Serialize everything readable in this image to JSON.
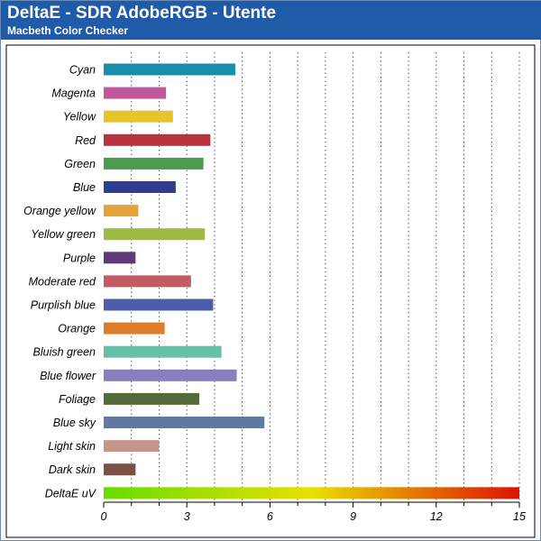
{
  "header": {
    "title": "DeltaE - SDR AdobeRGB - Utente",
    "subtitle": "Macbeth Color Checker"
  },
  "chart_data": {
    "type": "bar",
    "orientation": "horizontal",
    "categories": [
      "Cyan",
      "Magenta",
      "Yellow",
      "Red",
      "Green",
      "Blue",
      "Orange yellow",
      "Yellow green",
      "Purple",
      "Moderate red",
      "Purplish blue",
      "Orange",
      "Bluish green",
      "Blue flower",
      "Foliage",
      "Blue sky",
      "Light skin",
      "Dark skin",
      "DeltaE uV"
    ],
    "values": [
      4.75,
      2.25,
      2.5,
      3.85,
      3.6,
      2.6,
      1.25,
      3.65,
      1.15,
      3.15,
      3.95,
      2.2,
      4.25,
      4.8,
      3.45,
      5.8,
      2.0,
      1.15,
      15
    ],
    "colors": [
      "#1a8ea8",
      "#c0579c",
      "#e6c42a",
      "#b5343e",
      "#4b9a4d",
      "#303c8f",
      "#e3a33a",
      "#9cbb3f",
      "#5e3a78",
      "#c45a63",
      "#4d5da9",
      "#de7c2a",
      "#67bfaa",
      "#8a7fbd",
      "#536b3a",
      "#627aa2",
      "#c4968a",
      "#7a5144",
      "gradient"
    ],
    "gradient_colors": [
      "#66dd00",
      "#e8e000",
      "#dd1100"
    ],
    "xlim": [
      0,
      15
    ],
    "x_ticks": [
      "0",
      "3",
      "6",
      "9",
      "12",
      "15"
    ],
    "grid": "vertical dotted"
  }
}
